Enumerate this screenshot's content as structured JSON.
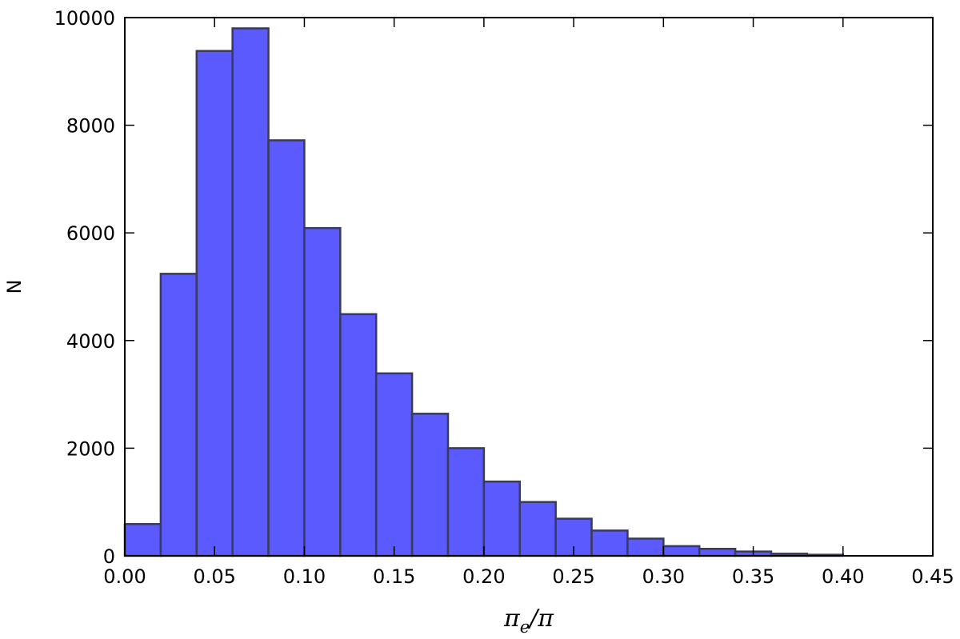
{
  "chart_data": {
    "type": "bar",
    "subtype": "histogram",
    "bin_edges": [
      0.0,
      0.02,
      0.04,
      0.06,
      0.08,
      0.1,
      0.12,
      0.14,
      0.16,
      0.18,
      0.2,
      0.22,
      0.24,
      0.26,
      0.28,
      0.3,
      0.32,
      0.34,
      0.36,
      0.38,
      0.4
    ],
    "values": [
      590,
      5240,
      9380,
      9800,
      7720,
      6090,
      4490,
      3390,
      2640,
      2000,
      1380,
      1000,
      690,
      470,
      320,
      180,
      130,
      80,
      40,
      20
    ],
    "xlabel": "π_e/π",
    "xlabel_main": "π",
    "xlabel_sub": "e",
    "xlabel_rest": "/π",
    "ylabel": "N",
    "xlim": [
      0.0,
      0.45
    ],
    "ylim": [
      0,
      10000
    ],
    "x_ticks": [
      "0.00",
      "0.05",
      "0.10",
      "0.15",
      "0.20",
      "0.25",
      "0.30",
      "0.35",
      "0.40",
      "0.45"
    ],
    "y_ticks": [
      "0",
      "2000",
      "4000",
      "6000",
      "8000",
      "10000"
    ],
    "bar_color": "#5a5aff",
    "edge_color": "#3a3a5a",
    "grid": false
  }
}
